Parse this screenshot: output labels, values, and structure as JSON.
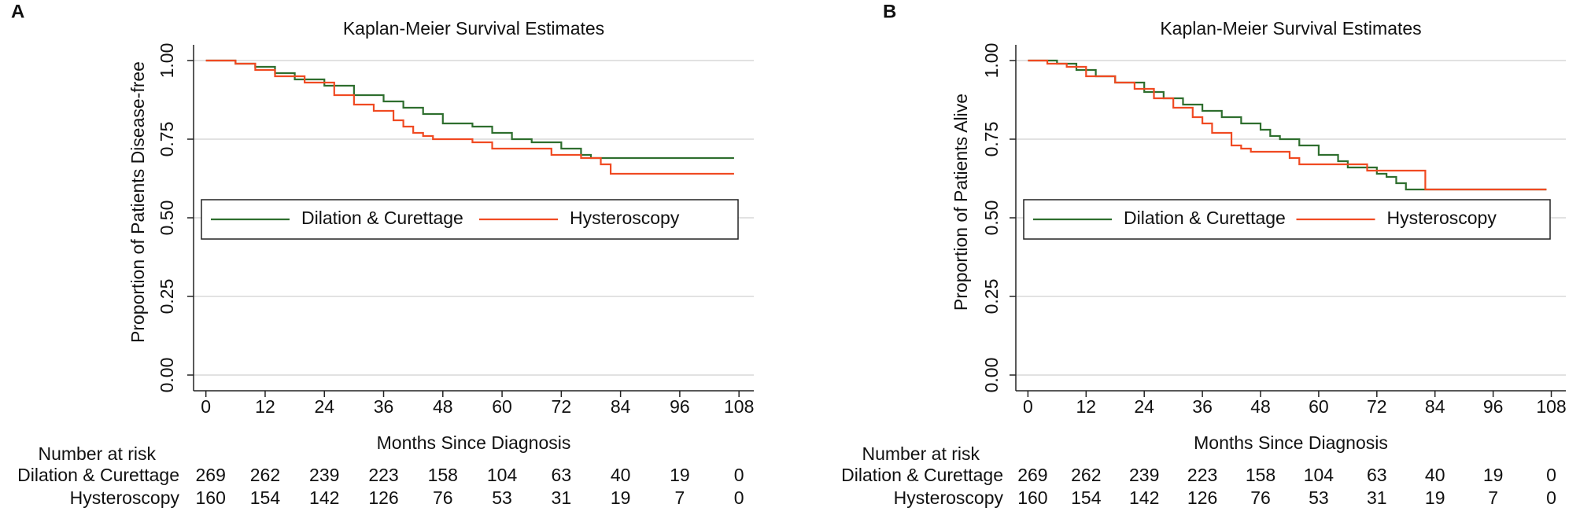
{
  "chart_data": [
    {
      "type": "step",
      "panel_label": "A",
      "title": "Kaplan-Meier Survival Estimates",
      "ylabel": "Proportion of Patients Disease-free",
      "xlabel": "Months Since Diagnosis",
      "xlim": [
        -2.5,
        111
      ],
      "xticks": [
        0,
        12,
        24,
        36,
        48,
        60,
        72,
        84,
        96,
        108
      ],
      "ylim": [
        -0.05,
        1.05
      ],
      "yticks": [
        {
          "value": 0,
          "label": "0.00"
        },
        {
          "value": 0.25,
          "label": "0.25"
        },
        {
          "value": 0.5,
          "label": "0.50"
        },
        {
          "value": 0.75,
          "label": "0.75"
        },
        {
          "value": 1,
          "label": "1.00"
        }
      ],
      "grid": true,
      "legend_loc": "center",
      "series": [
        {
          "name": "Dilation & Curettage",
          "color": "#2e6e2e",
          "x": [
            0,
            4,
            6,
            10,
            14,
            18,
            24,
            30,
            36,
            40,
            44,
            48,
            54,
            58,
            62,
            66,
            72,
            76,
            78,
            107
          ],
          "values": [
            1.0,
            1.0,
            0.99,
            0.98,
            0.96,
            0.94,
            0.92,
            0.89,
            0.87,
            0.85,
            0.83,
            0.8,
            0.79,
            0.77,
            0.75,
            0.74,
            0.72,
            0.7,
            0.69,
            0.69
          ]
        },
        {
          "name": "Hysteroscopy",
          "color": "#f04a22",
          "x": [
            0,
            6,
            10,
            14,
            20,
            26,
            30,
            34,
            38,
            40,
            42,
            44,
            46,
            54,
            58,
            70,
            76,
            80,
            82,
            107
          ],
          "values": [
            1.0,
            0.99,
            0.97,
            0.95,
            0.93,
            0.89,
            0.86,
            0.84,
            0.81,
            0.79,
            0.77,
            0.76,
            0.75,
            0.74,
            0.72,
            0.7,
            0.69,
            0.67,
            0.64,
            0.64
          ]
        }
      ],
      "risk_table": {
        "title": "Number at risk",
        "rows": [
          {
            "name": "Dilation & Curettage",
            "values": [
              269,
              262,
              239,
              223,
              158,
              104,
              63,
              40,
              19,
              0
            ]
          },
          {
            "name": "Hysteroscopy",
            "values": [
              160,
              154,
              142,
              126,
              76,
              53,
              31,
              19,
              7,
              0
            ]
          }
        ]
      }
    },
    {
      "type": "step",
      "panel_label": "B",
      "title": "Kaplan-Meier Survival Estimates",
      "ylabel": "Proportion of Patients Alive",
      "xlabel": "Months Since Diagnosis",
      "xlim": [
        -2.5,
        111
      ],
      "xticks": [
        0,
        12,
        24,
        36,
        48,
        60,
        72,
        84,
        96,
        108
      ],
      "ylim": [
        -0.05,
        1.05
      ],
      "yticks": [
        {
          "value": 0,
          "label": "0.00"
        },
        {
          "value": 0.25,
          "label": "0.25"
        },
        {
          "value": 0.5,
          "label": "0.50"
        },
        {
          "value": 0.75,
          "label": "0.75"
        },
        {
          "value": 1,
          "label": "1.00"
        }
      ],
      "grid": true,
      "legend_loc": "center",
      "series": [
        {
          "name": "Dilation & Curettage",
          "color": "#2e6e2e",
          "x": [
            0,
            6,
            10,
            14,
            18,
            24,
            28,
            32,
            36,
            40,
            44,
            48,
            50,
            52,
            56,
            60,
            64,
            66,
            72,
            74,
            76,
            78,
            107
          ],
          "values": [
            1.0,
            0.99,
            0.97,
            0.95,
            0.93,
            0.9,
            0.88,
            0.86,
            0.84,
            0.82,
            0.8,
            0.78,
            0.76,
            0.75,
            0.73,
            0.7,
            0.68,
            0.66,
            0.64,
            0.63,
            0.61,
            0.59,
            0.59
          ]
        },
        {
          "name": "Hysteroscopy",
          "color": "#f04a22",
          "x": [
            0,
            4,
            8,
            12,
            18,
            22,
            26,
            30,
            34,
            36,
            38,
            42,
            44,
            46,
            54,
            56,
            70,
            80,
            82,
            107
          ],
          "values": [
            1.0,
            0.99,
            0.98,
            0.95,
            0.93,
            0.91,
            0.88,
            0.85,
            0.82,
            0.8,
            0.77,
            0.73,
            0.72,
            0.71,
            0.69,
            0.67,
            0.65,
            0.65,
            0.59,
            0.59
          ]
        }
      ],
      "risk_table": {
        "title": "Number at risk",
        "rows": [
          {
            "name": "Dilation & Curettage",
            "values": [
              269,
              262,
              239,
              223,
              158,
              104,
              63,
              40,
              19,
              0
            ]
          },
          {
            "name": "Hysteroscopy",
            "values": [
              160,
              154,
              142,
              126,
              76,
              53,
              31,
              19,
              7,
              0
            ]
          }
        ]
      }
    }
  ]
}
